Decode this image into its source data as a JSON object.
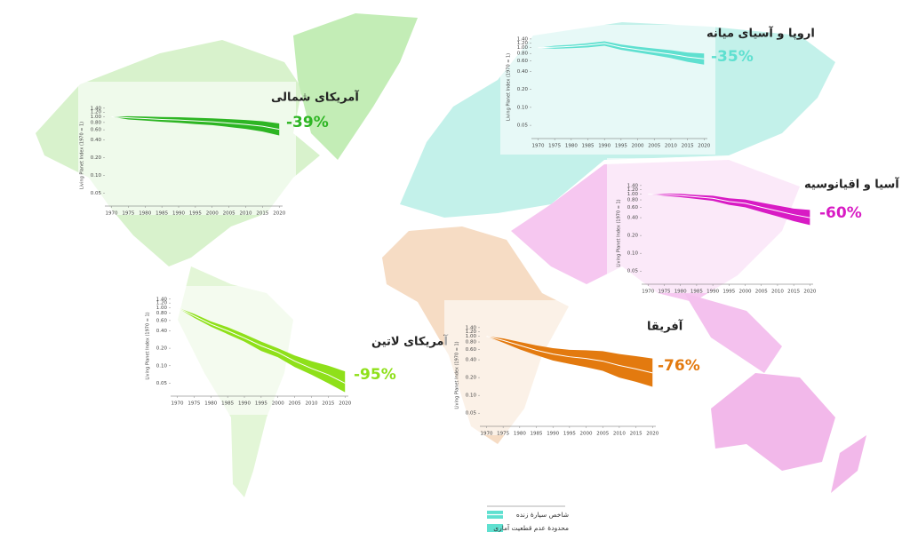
{
  "chart_data": [
    {
      "type": "line",
      "title": "آمریکای شمالی",
      "annotation": "-39%",
      "y_label": "Living Planet Index (1970 = 1)",
      "color": "#2db523",
      "log_scale": true,
      "x": [
        1970,
        1975,
        1980,
        1985,
        1990,
        1995,
        2000,
        2005,
        2010,
        2015,
        2020
      ],
      "values": [
        1,
        0.96,
        0.93,
        0.9,
        0.88,
        0.85,
        0.82,
        0.78,
        0.74,
        0.69,
        0.61
      ],
      "upper": [
        1,
        1.02,
        1.01,
        0.99,
        0.98,
        0.96,
        0.94,
        0.91,
        0.88,
        0.84,
        0.77
      ],
      "lower": [
        1,
        0.9,
        0.86,
        0.82,
        0.79,
        0.75,
        0.72,
        0.67,
        0.62,
        0.56,
        0.48
      ],
      "xlim": [
        1968,
        2021
      ],
      "xticks": [
        1970,
        1975,
        1980,
        1985,
        1990,
        1995,
        2000,
        2005,
        2010,
        2015,
        2020
      ],
      "ylim": [
        0.03,
        1.6
      ],
      "yticks": [
        {
          "value": 1.4,
          "label": "1.40"
        },
        {
          "value": 1.2,
          "label": "1.20"
        },
        {
          "value": 1,
          "label": "1.00"
        },
        {
          "value": 0.8,
          "label": "0.80"
        },
        {
          "value": 0.6,
          "label": "0.60"
        },
        {
          "value": 0.4,
          "label": "0.40"
        },
        {
          "value": 0.2,
          "label": "0.20"
        },
        {
          "value": 0.1,
          "label": "0.10"
        },
        0.05
      ]
    },
    {
      "type": "line",
      "title": "اروپا و آسیای میانه",
      "annotation": "-35%",
      "y_label": "Living Planet Index (1970 = 1)",
      "color": "#5fe0d0",
      "log_scale": true,
      "x": [
        1970,
        1975,
        1980,
        1985,
        1990,
        1995,
        2000,
        2005,
        2010,
        2015,
        2020
      ],
      "values": [
        1,
        1.02,
        1.05,
        1.1,
        1.18,
        1.02,
        0.93,
        0.85,
        0.78,
        0.7,
        0.65
      ],
      "upper": [
        1,
        1.08,
        1.12,
        1.19,
        1.28,
        1.13,
        1.04,
        0.97,
        0.91,
        0.83,
        0.8
      ],
      "lower": [
        1,
        0.96,
        0.98,
        1.01,
        1.08,
        0.92,
        0.83,
        0.75,
        0.67,
        0.58,
        0.52
      ],
      "xlim": [
        1968,
        2021
      ],
      "xticks": [
        1970,
        1975,
        1980,
        1985,
        1990,
        1995,
        2000,
        2005,
        2010,
        2015,
        2020
      ],
      "ylim": [
        0.03,
        1.6
      ],
      "yticks": [
        {
          "value": 1.4,
          "label": "1.40"
        },
        {
          "value": 1.2,
          "label": "1.20"
        },
        {
          "value": 1,
          "label": "1.00"
        },
        {
          "value": 0.8,
          "label": "0.80"
        },
        {
          "value": 0.6,
          "label": "0.60"
        },
        {
          "value": 0.4,
          "label": "0.40"
        },
        {
          "value": 0.2,
          "label": "0.20"
        },
        {
          "value": 0.1,
          "label": "0.10"
        },
        0.05
      ]
    },
    {
      "type": "line",
      "title": "آسیا و اقیانوسیه",
      "annotation": "-60%",
      "y_label": "Living Planet Index (1970 = 1)",
      "color": "#d81bc4",
      "log_scale": true,
      "x": [
        1970,
        1975,
        1980,
        1985,
        1990,
        1995,
        2000,
        2005,
        2010,
        2015,
        2020
      ],
      "values": [
        1,
        0.98,
        0.95,
        0.9,
        0.85,
        0.75,
        0.7,
        0.6,
        0.52,
        0.45,
        0.4
      ],
      "upper": [
        1,
        1.02,
        1.01,
        0.97,
        0.94,
        0.85,
        0.81,
        0.72,
        0.64,
        0.57,
        0.54
      ],
      "lower": [
        1,
        0.94,
        0.89,
        0.83,
        0.77,
        0.66,
        0.6,
        0.5,
        0.42,
        0.35,
        0.3
      ],
      "xlim": [
        1968,
        2021
      ],
      "xticks": [
        1970,
        1975,
        1980,
        1985,
        1990,
        1995,
        2000,
        2005,
        2010,
        2015,
        2020
      ],
      "ylim": [
        0.03,
        1.6
      ],
      "yticks": [
        {
          "value": 1.4,
          "label": "1.40"
        },
        {
          "value": 1.2,
          "label": "1.20"
        },
        {
          "value": 1,
          "label": "1.00"
        },
        {
          "value": 0.8,
          "label": "0.80"
        },
        {
          "value": 0.6,
          "label": "0.60"
        },
        {
          "value": 0.4,
          "label": "0.40"
        },
        {
          "value": 0.2,
          "label": "0.20"
        },
        {
          "value": 0.1,
          "label": "0.10"
        },
        0.05
      ]
    },
    {
      "type": "line",
      "title": "آمریکای لاتین",
      "annotation": "-95%",
      "y_label": "Living Planet Index (1970 = 1)",
      "color": "#8fe01a",
      "log_scale": true,
      "x": [
        1970,
        1975,
        1980,
        1985,
        1990,
        1995,
        2000,
        2005,
        2010,
        2015,
        2020
      ],
      "values": [
        1,
        0.72,
        0.52,
        0.4,
        0.3,
        0.22,
        0.17,
        0.12,
        0.09,
        0.07,
        0.05
      ],
      "upper": [
        1,
        0.78,
        0.58,
        0.46,
        0.35,
        0.26,
        0.2,
        0.15,
        0.12,
        0.1,
        0.08
      ],
      "lower": [
        1,
        0.67,
        0.47,
        0.35,
        0.26,
        0.18,
        0.14,
        0.095,
        0.07,
        0.05,
        0.035
      ],
      "xlim": [
        1968,
        2021
      ],
      "xticks": [
        1970,
        1975,
        1980,
        1985,
        1990,
        1995,
        2000,
        2005,
        2010,
        2015,
        2020
      ],
      "ylim": [
        0.03,
        1.6
      ],
      "yticks": [
        {
          "value": 1.4,
          "label": "1.40"
        },
        {
          "value": 1.2,
          "label": "1.20"
        },
        {
          "value": 1,
          "label": "1.00"
        },
        {
          "value": 0.8,
          "label": "0.80"
        },
        {
          "value": 0.6,
          "label": "0.60"
        },
        {
          "value": 0.4,
          "label": "0.40"
        },
        {
          "value": 0.2,
          "label": "0.20"
        },
        {
          "value": 0.1,
          "label": "0.10"
        },
        0.05
      ]
    },
    {
      "type": "line",
      "title": "آفریقا",
      "annotation": "-76%",
      "y_label": "Living Planet Index (1970 = 1)",
      "color": "#e37a0f",
      "log_scale": true,
      "x": [
        1970,
        1975,
        1980,
        1985,
        1990,
        1995,
        2000,
        2005,
        2010,
        2015,
        2020
      ],
      "values": [
        1,
        0.85,
        0.7,
        0.58,
        0.5,
        0.45,
        0.42,
        0.38,
        0.32,
        0.28,
        0.24
      ],
      "upper": [
        1,
        0.92,
        0.8,
        0.7,
        0.63,
        0.59,
        0.58,
        0.56,
        0.5,
        0.46,
        0.42
      ],
      "lower": [
        1,
        0.78,
        0.6,
        0.48,
        0.39,
        0.34,
        0.3,
        0.26,
        0.2,
        0.17,
        0.14
      ],
      "xlim": [
        1968,
        2021
      ],
      "xticks": [
        1970,
        1975,
        1980,
        1985,
        1990,
        1995,
        2000,
        2005,
        2010,
        2015,
        2020
      ],
      "ylim": [
        0.03,
        1.6
      ],
      "yticks": [
        {
          "value": 1.4,
          "label": "1.40"
        },
        {
          "value": 1.2,
          "label": "1.20"
        },
        {
          "value": 1,
          "label": "1.00"
        },
        {
          "value": 0.8,
          "label": "0.80"
        },
        {
          "value": 0.6,
          "label": "0.60"
        },
        {
          "value": 0.4,
          "label": "0.40"
        },
        {
          "value": 0.2,
          "label": "0.20"
        },
        {
          "value": 0.1,
          "label": "0.10"
        },
        0.05
      ]
    }
  ],
  "legend": [
    {
      "label": "شاخص سیارهٔ زنده"
    },
    {
      "label": "محدودهٔ عدم قطعیت آماری"
    }
  ]
}
